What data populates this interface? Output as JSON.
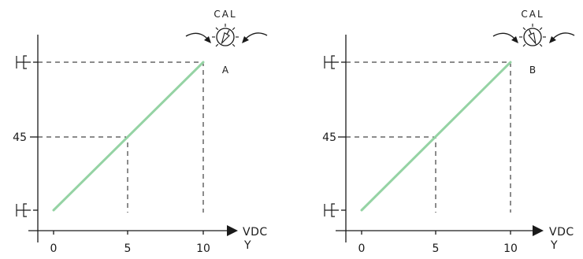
{
  "panels": [
    {
      "id": "a",
      "cal_label": "CAL",
      "knob_label": "A",
      "knob_angle_deg": 30,
      "x_unit": "VDC",
      "x_var": "Y",
      "x_ticks": [
        "0",
        "5",
        "10"
      ],
      "y_mid_label": "45",
      "line": {
        "x": [
          0,
          10
        ],
        "y_frac": [
          0.0,
          1.0
        ]
      }
    },
    {
      "id": "b",
      "cal_label": "CAL",
      "knob_label": "B",
      "knob_angle_deg": -25,
      "x_unit": "VDC",
      "x_var": "Y",
      "x_ticks": [
        "0",
        "5",
        "10"
      ],
      "y_mid_label": "45",
      "line": {
        "x": [
          0,
          10
        ],
        "y_frac": [
          0.0,
          1.0
        ]
      }
    }
  ],
  "colors": {
    "line": "#95d3a4",
    "ink": "#1a1a1a"
  }
}
